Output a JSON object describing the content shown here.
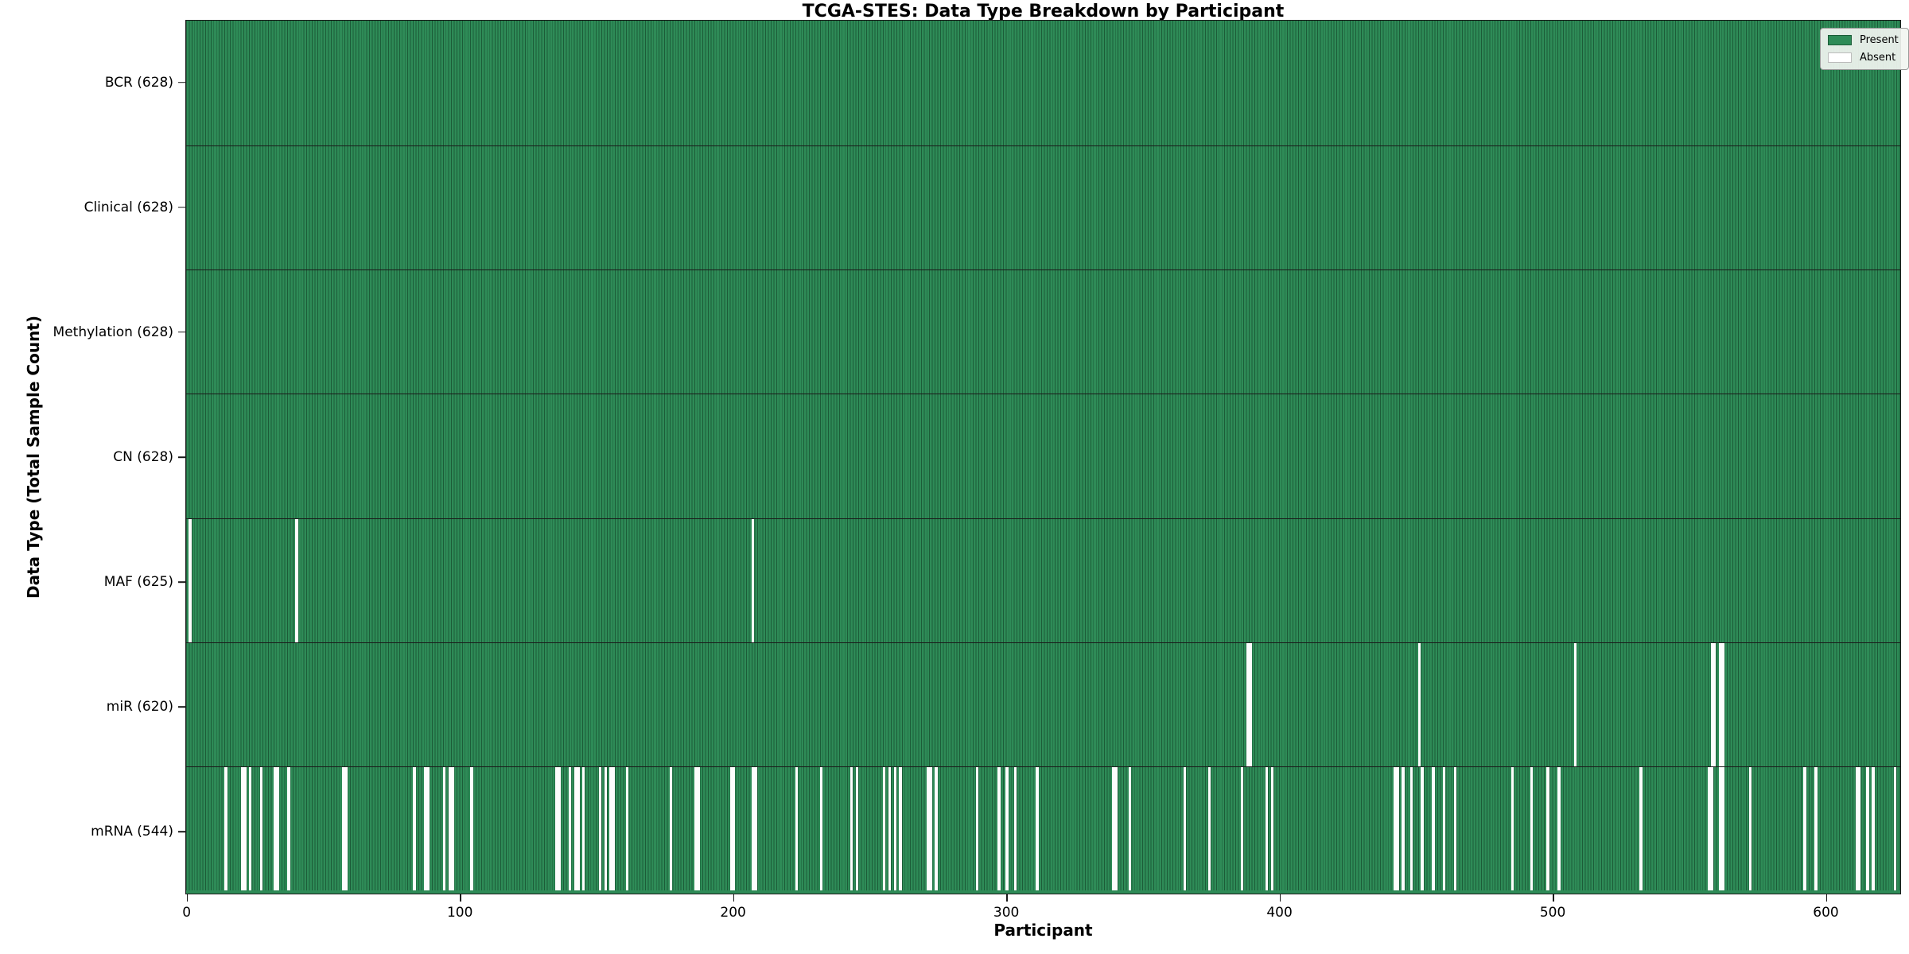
{
  "chart_data": {
    "type": "heatmap",
    "title": "TCGA-STES: Data Type Breakdown by Participant",
    "xlabel": "Participant",
    "ylabel": "Data Type (Total Sample Count)",
    "n_participants": 628,
    "x_ticks": [
      0,
      100,
      200,
      300,
      400,
      500,
      600
    ],
    "legend": [
      {
        "label": "Present",
        "color": "#2e8b57"
      },
      {
        "label": "Absent",
        "color": "#ffffff"
      }
    ],
    "colors": {
      "present": "#2e8b57",
      "absent": "#fdfdfd",
      "bar_edge": "#1c5c38",
      "grid_line": "#1a1a1a"
    },
    "rows": [
      {
        "label": "BCR (628)",
        "data_type": "BCR",
        "present_count": 628,
        "absent_participants": []
      },
      {
        "label": "Clinical (628)",
        "data_type": "Clinical",
        "present_count": 628,
        "absent_participants": []
      },
      {
        "label": "Methylation (628)",
        "data_type": "Methylation",
        "present_count": 628,
        "absent_participants": []
      },
      {
        "label": "CN (628)",
        "data_type": "CN",
        "present_count": 628,
        "absent_participants": []
      },
      {
        "label": "MAF (625)",
        "data_type": "MAF",
        "present_count": 625,
        "absent_participants": [
          1,
          40,
          207
        ]
      },
      {
        "label": "miR (620)",
        "data_type": "miR",
        "present_count": 620,
        "absent_participants": [
          388,
          389,
          451,
          508,
          558,
          559,
          561,
          562
        ]
      },
      {
        "label": "mRNA (544)",
        "data_type": "mRNA",
        "present_count": 544,
        "absent_participants": [
          14,
          20,
          21,
          23,
          27,
          32,
          33,
          37,
          57,
          58,
          83,
          87,
          88,
          94,
          96,
          97,
          104,
          135,
          136,
          140,
          142,
          143,
          145,
          151,
          153,
          155,
          156,
          161,
          177,
          186,
          187,
          199,
          200,
          207,
          208,
          223,
          232,
          243,
          245,
          255,
          257,
          259,
          261,
          271,
          272,
          274,
          289,
          297,
          300,
          303,
          311,
          339,
          340,
          345,
          365,
          374,
          386,
          395,
          397,
          442,
          443,
          445,
          448,
          452,
          456,
          460,
          464,
          485,
          492,
          498,
          502,
          532,
          557,
          558,
          561,
          562,
          572,
          592,
          596,
          611,
          612,
          615,
          617,
          625
        ]
      }
    ]
  }
}
